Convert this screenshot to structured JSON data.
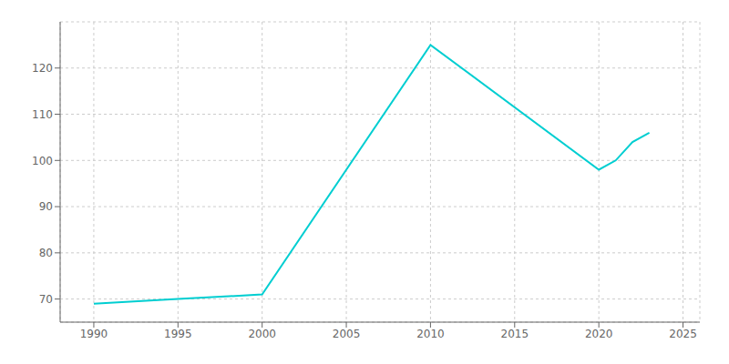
{
  "chart_data": {
    "type": "line",
    "x": [
      1990,
      1995,
      2000,
      2010,
      2020,
      2021,
      2022,
      2023
    ],
    "values": [
      69,
      70,
      71,
      125,
      98,
      100,
      104,
      106
    ],
    "color": "#00CED1",
    "xlim": [
      1988,
      2026
    ],
    "ylim": [
      65,
      130
    ],
    "xticks": [
      1990,
      1995,
      2000,
      2005,
      2010,
      2015,
      2020,
      2025
    ],
    "yticks": [
      70,
      80,
      90,
      100,
      110,
      120
    ],
    "grid": true
  }
}
